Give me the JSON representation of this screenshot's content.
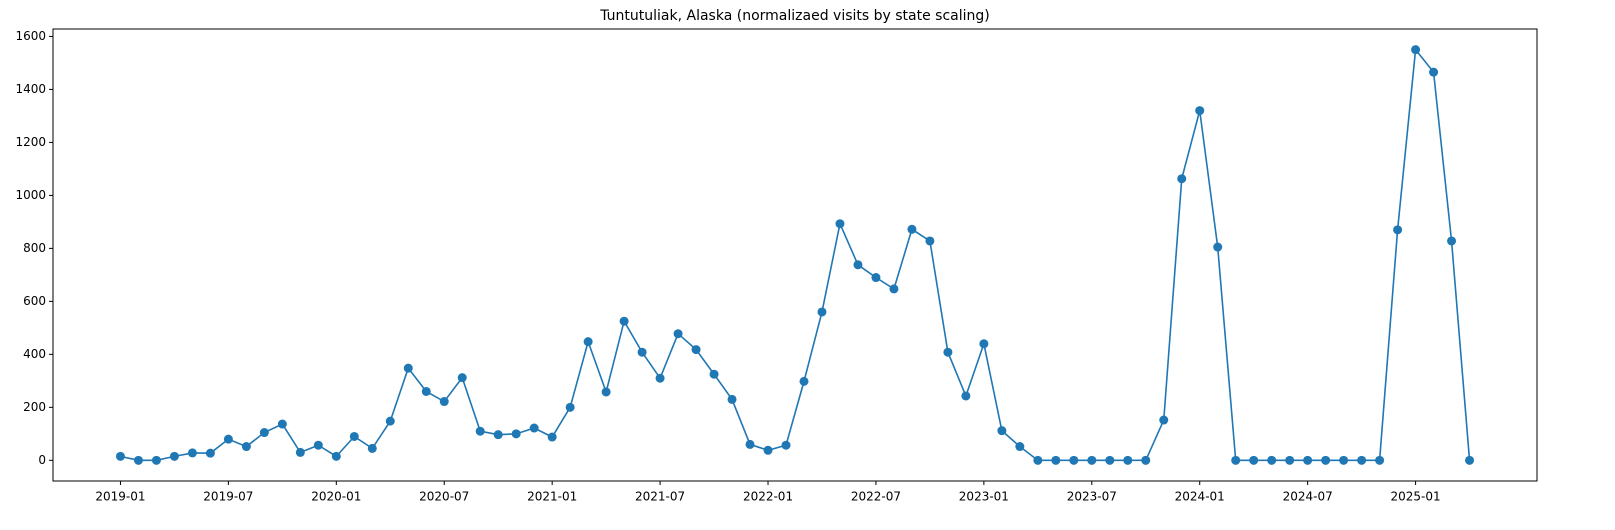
{
  "chart_data": {
    "type": "line",
    "title": "Tuntutuliak, Alaska (normalizaed visits by state scaling)",
    "x": [
      "2019-01",
      "2019-02",
      "2019-03",
      "2019-04",
      "2019-05",
      "2019-06",
      "2019-07",
      "2019-08",
      "2019-09",
      "2019-10",
      "2019-11",
      "2019-12",
      "2020-01",
      "2020-02",
      "2020-03",
      "2020-04",
      "2020-05",
      "2020-06",
      "2020-07",
      "2020-08",
      "2020-09",
      "2020-10",
      "2020-11",
      "2020-12",
      "2021-01",
      "2021-02",
      "2021-03",
      "2021-04",
      "2021-05",
      "2021-06",
      "2021-07",
      "2021-08",
      "2021-09",
      "2021-10",
      "2021-11",
      "2021-12",
      "2022-01",
      "2022-02",
      "2022-03",
      "2022-04",
      "2022-05",
      "2022-06",
      "2022-07",
      "2022-08",
      "2022-09",
      "2022-10",
      "2022-11",
      "2022-12",
      "2023-01",
      "2023-02",
      "2023-03",
      "2023-04",
      "2023-05",
      "2023-06",
      "2023-07",
      "2023-08",
      "2023-09",
      "2023-10",
      "2023-11",
      "2023-12",
      "2024-01",
      "2024-02",
      "2024-03",
      "2024-04",
      "2024-05",
      "2024-06",
      "2024-07",
      "2024-08",
      "2024-09",
      "2024-10",
      "2024-11",
      "2024-12",
      "2025-01",
      "2025-02",
      "2025-03",
      "2025-04"
    ],
    "values": [
      15,
      0,
      0,
      15,
      28,
      27,
      80,
      52,
      105,
      137,
      30,
      57,
      15,
      90,
      45,
      148,
      348,
      260,
      222,
      312,
      110,
      97,
      100,
      122,
      88,
      200,
      448,
      258,
      525,
      408,
      310,
      478,
      418,
      325,
      230,
      60,
      38,
      57,
      298,
      560,
      893,
      738,
      690,
      647,
      872,
      828,
      408,
      243,
      440,
      112,
      52,
      0,
      0,
      0,
      0,
      0,
      0,
      0,
      152,
      1063,
      1320,
      805,
      0,
      0,
      0,
      0,
      0,
      0,
      0,
      0,
      0,
      870,
      1550,
      1465,
      828,
      0
    ],
    "color": "#1f77b4",
    "ylim": [
      -78,
      1628
    ],
    "yticks": [
      0,
      200,
      400,
      600,
      800,
      1000,
      1200,
      1400,
      1600
    ],
    "xticks": [
      "2019-01",
      "2019-07",
      "2020-01",
      "2020-07",
      "2021-01",
      "2021-07",
      "2022-01",
      "2022-07",
      "2023-01",
      "2023-07",
      "2024-01",
      "2024-07",
      "2025-01"
    ],
    "grid": false
  }
}
